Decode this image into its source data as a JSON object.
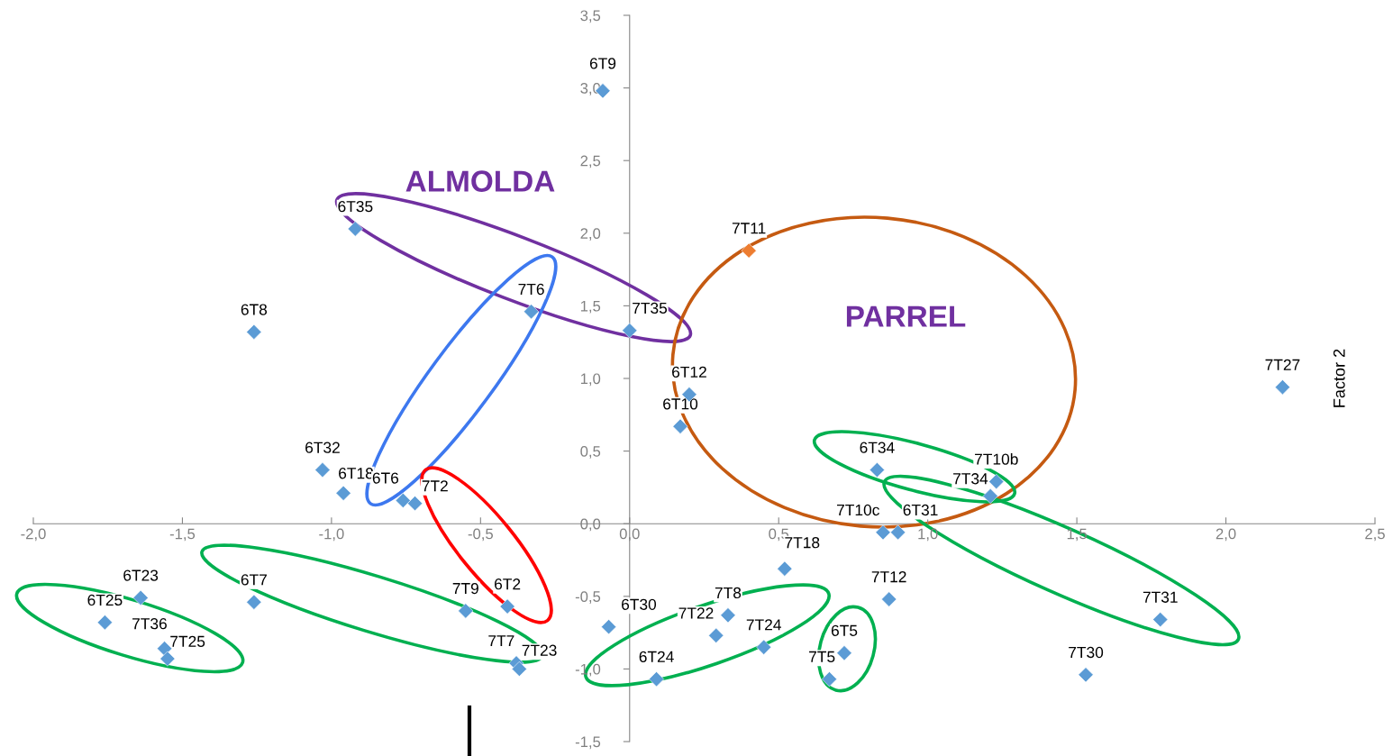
{
  "chart_data": {
    "type": "scatter",
    "ylabel": "Factor 2",
    "marker": "diamond",
    "grid": false,
    "legend": false,
    "xlim": [
      -2.0,
      2.5
    ],
    "ylim": [
      -1.5,
      3.5
    ],
    "xticks": [
      {
        "value": -2.0,
        "label": "-2,0"
      },
      {
        "value": -1.5,
        "label": "-1,5"
      },
      {
        "value": -1.0,
        "label": "-1,0"
      },
      {
        "value": -0.5,
        "label": "-0,5"
      },
      {
        "value": 0.0,
        "label": "0,0"
      },
      {
        "value": 0.5,
        "label": "0,5"
      },
      {
        "value": 1.0,
        "label": "1,0"
      },
      {
        "value": 1.5,
        "label": "1,5"
      },
      {
        "value": 2.0,
        "label": "2,0"
      },
      {
        "value": 2.5,
        "label": "2,5"
      }
    ],
    "yticks": [
      {
        "value": -1.5,
        "label": "-1,5"
      },
      {
        "value": -1.0,
        "label": "-1,0"
      },
      {
        "value": -0.5,
        "label": "-0,5"
      },
      {
        "value": 0.0,
        "label": "0,0"
      },
      {
        "value": 0.5,
        "label": "0,5"
      },
      {
        "value": 1.0,
        "label": "1,0"
      },
      {
        "value": 1.5,
        "label": "1,5"
      },
      {
        "value": 2.0,
        "label": "2,0"
      },
      {
        "value": 2.5,
        "label": "2,5"
      },
      {
        "value": 3.0,
        "label": "3,0"
      },
      {
        "value": 3.5,
        "label": "3,5"
      }
    ],
    "annotations": [
      "ALMOLDA",
      "PARREL"
    ],
    "series": [
      {
        "color": "#5b9bd5",
        "x": [
          -0.09,
          -0.92,
          -1.26,
          -0.33,
          0.0,
          0.2,
          0.17,
          2.19,
          -1.03,
          -0.96,
          -0.76,
          -0.72,
          0.83,
          1.23,
          1.21,
          0.85,
          0.9,
          0.52,
          0.87,
          1.78,
          1.53,
          0.72,
          0.67,
          0.33,
          0.29,
          0.45,
          0.09,
          -0.07,
          -0.41,
          -0.55,
          -0.38,
          -0.37,
          -1.26,
          -1.64,
          -1.76,
          -1.56,
          -1.55
        ],
        "values": [
          2.98,
          2.03,
          1.32,
          1.46,
          1.33,
          0.89,
          0.67,
          0.94,
          0.37,
          0.21,
          0.16,
          0.14,
          0.37,
          0.29,
          0.19,
          -0.06,
          -0.06,
          -0.31,
          -0.52,
          -0.66,
          -1.04,
          -0.89,
          -1.07,
          -0.63,
          -0.77,
          -0.85,
          -1.07,
          -0.71,
          -0.57,
          -0.6,
          -0.96,
          -1.0,
          -0.54,
          -0.51,
          -0.68,
          -0.86,
          -0.93
        ],
        "value_labels": [
          "6T9",
          "6T35",
          "6T8",
          "7T6",
          "7T35",
          "6T12",
          "6T10",
          "7T27",
          "6T32",
          "6T18",
          "6T6",
          "7T2",
          "6T34",
          "7T10b",
          "7T34",
          "7T10c",
          "6T31",
          "7T18",
          "7T12",
          "7T31",
          "7T30",
          "6T5",
          "7T5",
          "7T8",
          "7T22",
          "7T24",
          "6T24",
          "6T30",
          "6T2",
          "7T9",
          "7T7",
          "7T23",
          "6T7",
          "6T23",
          "6T25",
          "7T36",
          "7T25"
        ]
      },
      {
        "color": "#ed7d31",
        "x": [
          0.4
        ],
        "values": [
          1.88
        ],
        "value_labels": [
          "7T11"
        ]
      }
    ]
  }
}
